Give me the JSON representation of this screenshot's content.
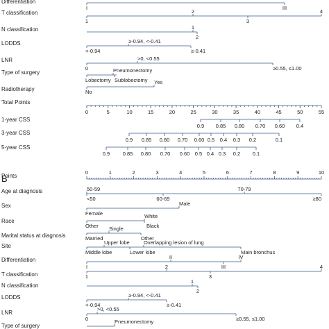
{
  "panel_a": {
    "rows": [
      {
        "label": "Differentiation",
        "levels": [
          "I",
          "III"
        ]
      },
      {
        "label": "T classification",
        "levels": [
          "1",
          "2",
          "3",
          "4"
        ]
      },
      {
        "label": "N classification",
        "levels": [
          "1",
          "2"
        ]
      },
      {
        "label": "LODDS",
        "levels": [
          "≥-0.94, <-0.41",
          "<-0.94",
          "≥-0.41"
        ]
      },
      {
        "label": "LNR",
        "levels": [
          ">0, <0.55",
          "0",
          "≥0.55, ≤1.00"
        ]
      },
      {
        "label": "Type of surgery",
        "levels": [
          "Pneumonectomy",
          "Lobectomy",
          "Sublobectomy"
        ]
      },
      {
        "label": "Radiotherapy",
        "levels": [
          "Yes",
          "No"
        ]
      }
    ],
    "scales": [
      {
        "label": "Total Points",
        "ticks": [
          "0",
          "5",
          "10",
          "15",
          "20",
          "25",
          "30",
          "35",
          "40",
          "45",
          "50",
          "55"
        ]
      },
      {
        "label": "1-year CSS",
        "ticks": [
          "0.9",
          "0.85",
          "0.80",
          "0.70",
          "0.60",
          "0.4"
        ]
      },
      {
        "label": "3-year CSS",
        "ticks": [
          "0.9",
          "0.85",
          "0.80",
          "0.70",
          "0.60",
          "0.5",
          "0.4",
          "0.3",
          "0.2",
          "0.1"
        ]
      },
      {
        "label": "5-year CSS",
        "ticks": [
          "0.9",
          "0.85",
          "0.80",
          "0.70",
          "0.60",
          "0.5",
          "0.4",
          "0.3",
          "0.2",
          "0.1"
        ]
      }
    ]
  },
  "panel_b": {
    "letter": "B",
    "points": {
      "label": "Points",
      "ticks": [
        "0",
        "1",
        "2",
        "3",
        "4",
        "5",
        "6",
        "7",
        "8",
        "9",
        "10"
      ]
    },
    "rows": [
      {
        "label": "Age at diagnosis",
        "levels": [
          "50-59",
          "70-79",
          "<50",
          "60-69",
          "≥80"
        ]
      },
      {
        "label": "Sex",
        "levels": [
          "Male",
          "Female"
        ]
      },
      {
        "label": "Race",
        "levels": [
          "White",
          "Other",
          "Black"
        ]
      },
      {
        "label": "Marital status at diagnosis",
        "levels": [
          "Single",
          "Married",
          "Other"
        ]
      },
      {
        "label": "Site",
        "levels": [
          "Upper lobe",
          "Overlapping lesion of lung",
          "Middle lobe",
          "Lower lobe",
          "Main bronchus"
        ]
      },
      {
        "label": "Differentiation",
        "levels": [
          "I",
          "II",
          "III",
          "IV"
        ]
      },
      {
        "label": "T classification",
        "levels": [
          "2",
          "4",
          "1",
          "3"
        ]
      },
      {
        "label": "N classification",
        "levels": [
          "1",
          "2"
        ]
      },
      {
        "label": "LODDS",
        "levels": [
          "≥-0.94, <-0.41",
          "<-0.94",
          "≥-0.41"
        ]
      },
      {
        "label": "LNR",
        "levels": [
          ">0, <0.55",
          "0",
          "≥0.55, ≤1.00"
        ]
      },
      {
        "label": "Type of surgery",
        "levels": [
          "Pneumonectomy"
        ]
      }
    ]
  }
}
